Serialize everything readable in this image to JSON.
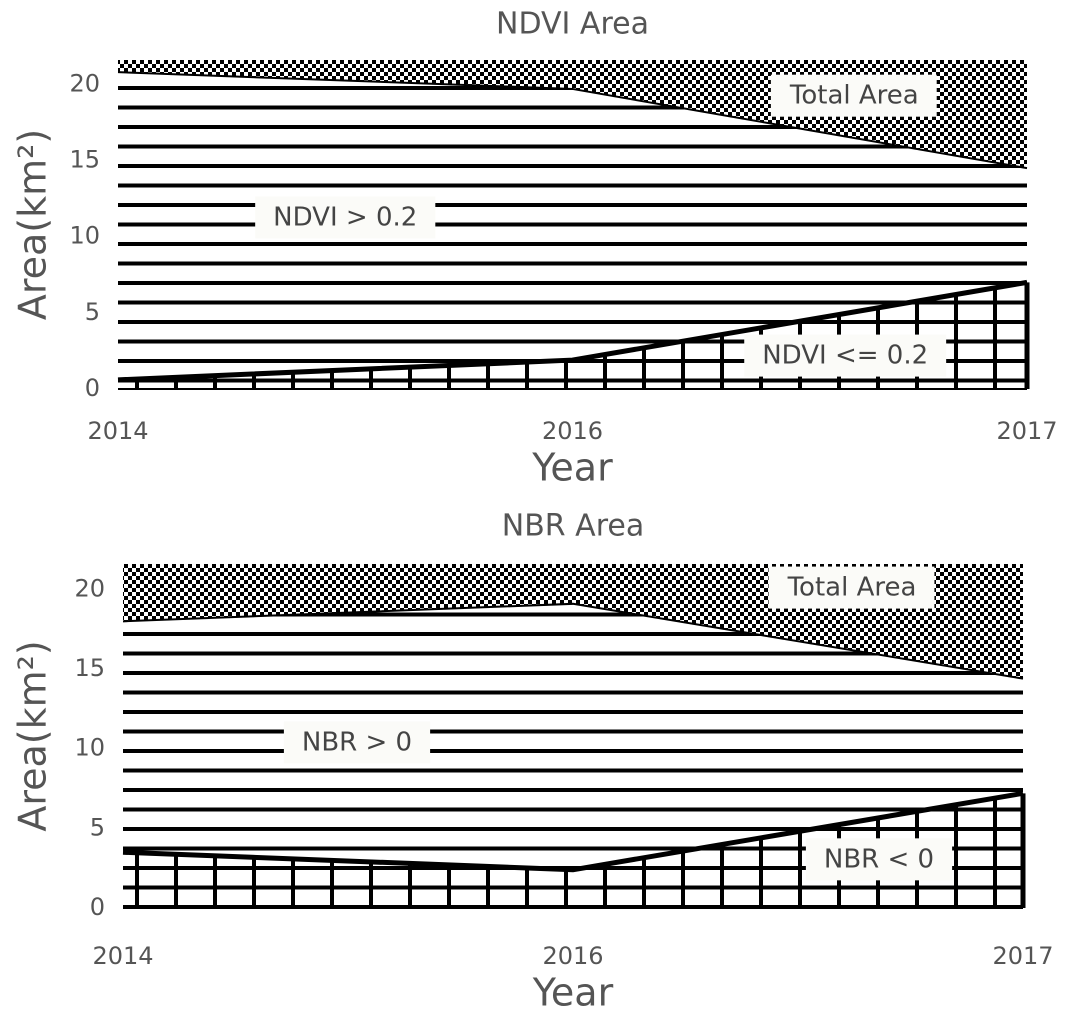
{
  "chart_data": [
    {
      "type": "stacked-area",
      "title": "NDVI Area",
      "x_label": "Year",
      "y_label": "Area(km²)",
      "categories": [
        "2014",
        "2016",
        "2017"
      ],
      "series": [
        {
          "name": "NDVI <= 0.2",
          "color": "#000000",
          "values": [
            0.6,
            1.9,
            7.0
          ]
        },
        {
          "name": "NDVI > 0.2",
          "color": "#000000",
          "values": [
            20.2,
            17.8,
            7.5
          ]
        }
      ],
      "annotation": "Total Area",
      "ylim": [
        0,
        21.6
      ],
      "yticks": [
        0,
        5,
        10,
        15,
        20
      ]
    },
    {
      "type": "stacked-area",
      "title": "NBR Area",
      "x_label": "Year",
      "y_label": "Area(km²)",
      "categories": [
        "2014",
        "2016",
        "2017"
      ],
      "series": [
        {
          "name": "NBR < 0",
          "color": "#000000",
          "values": [
            3.5,
            2.4,
            7.2
          ]
        },
        {
          "name": "NBR > 0",
          "color": "#000000",
          "values": [
            14.5,
            16.7,
            7.2
          ]
        }
      ],
      "annotation": "Total Area",
      "ylim": [
        0,
        21.6
      ],
      "yticks": [
        0,
        5,
        10,
        15,
        20
      ]
    }
  ]
}
